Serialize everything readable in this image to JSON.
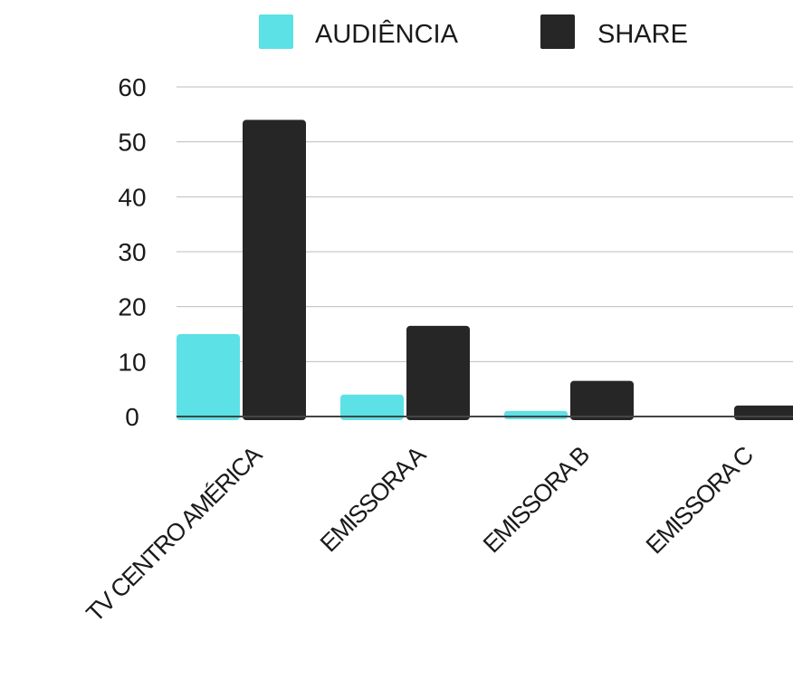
{
  "chart_data": {
    "type": "bar",
    "categories": [
      "TV CENTRO AMÉRICA",
      "EMISSORA A",
      "EMISSORA B",
      "EMISSORA C"
    ],
    "series": [
      {
        "name": "AUDIÊNCIA",
        "color": "#5ce1e6",
        "values": [
          15,
          4,
          1,
          0
        ]
      },
      {
        "name": "SHARE",
        "color": "#262626",
        "values": [
          54,
          16.5,
          6.5,
          2
        ]
      }
    ],
    "ylim": [
      0,
      60
    ],
    "yticks": [
      0,
      10,
      20,
      30,
      40,
      50,
      60
    ],
    "xlabel": "",
    "ylabel": "",
    "title": "",
    "grid": true,
    "legend": "top-center"
  }
}
